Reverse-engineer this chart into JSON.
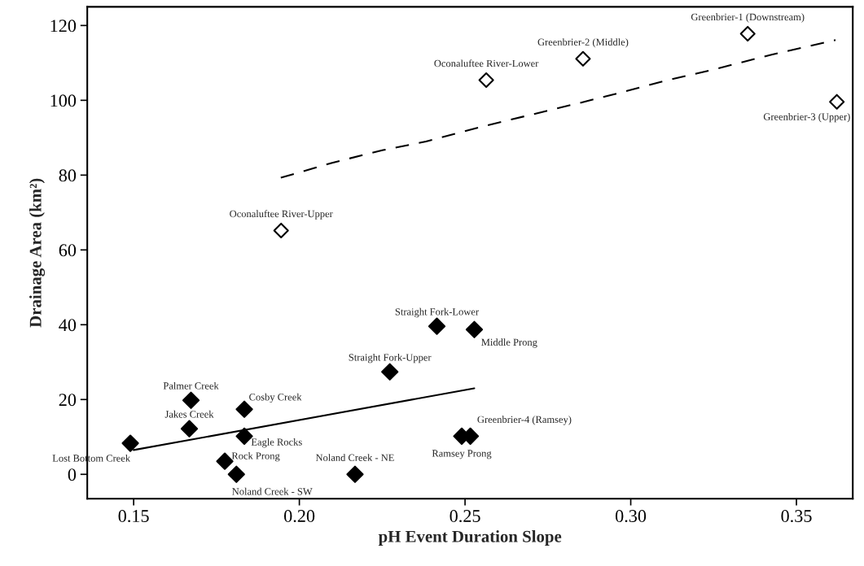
{
  "chart_data": {
    "type": "scatter",
    "xlabel": "pH Event Duration Slope",
    "ylabel": "Drainage Area (km²)",
    "xlim": [
      0.136,
      0.367
    ],
    "ylim": [
      -6.5,
      125
    ],
    "xticks": [
      {
        "value": 0.15,
        "label": "0.15"
      },
      {
        "value": 0.2,
        "label": "0.20"
      },
      {
        "value": 0.25,
        "label": "0.25"
      },
      {
        "value": 0.3,
        "label": "0.30"
      },
      {
        "value": 0.35,
        "label": "0.35"
      }
    ],
    "yticks": [
      0,
      20,
      40,
      60,
      80,
      100,
      120
    ],
    "grid": false,
    "legend": false,
    "marker": "diamond",
    "series": [
      {
        "color": "#000000",
        "x": [
          0.149,
          0.1673,
          0.1668,
          0.1834,
          0.1834,
          0.1775,
          0.181,
          0.2168,
          0.2273,
          0.2415,
          0.2528,
          0.249,
          0.2516
        ],
        "values": [
          8.3,
          19.8,
          12.2,
          17.4,
          10.2,
          3.5,
          0,
          0,
          27.4,
          39.6,
          38.7,
          10.2,
          10.2
        ]
      },
      {
        "color": "#ffffff",
        "x": [
          0.1945,
          0.2564,
          0.2856,
          0.3353,
          0.3622
        ],
        "values": [
          65.2,
          105.4,
          111.1,
          117.8,
          99.6
        ]
      },
      {
        "type": "line",
        "color": "#000000",
        "line_style": "solid",
        "marker": "none",
        "x": [
          0.15,
          0.2528
        ],
        "values": [
          6.5,
          23.0
        ]
      },
      {
        "type": "line",
        "color": "#000000",
        "line_style": "dashed",
        "marker": "none",
        "x": [
          0.1944,
          0.2099,
          0.2253,
          0.2382,
          0.2562,
          0.2846,
          0.2949,
          0.3103,
          0.3258,
          0.3425,
          0.3618
        ],
        "values": [
          79.3,
          83.3,
          86.7,
          89.0,
          93.2,
          99.3,
          101.6,
          105.2,
          108.4,
          112.2,
          116.1
        ]
      }
    ],
    "annotations": [
      {
        "text": "Lost Bottom Creek",
        "x": 0.149,
        "y": 8.3
      },
      {
        "text": "Palmer Creek",
        "x": 0.1673,
        "y": 19.8
      },
      {
        "text": "Jakes Creek",
        "x": 0.1668,
        "y": 12.2
      },
      {
        "text": "Cosby Creek",
        "x": 0.1834,
        "y": 17.4
      },
      {
        "text": "Eagle Rocks",
        "x": 0.1834,
        "y": 10.2
      },
      {
        "text": "Rock Prong",
        "x": 0.1775,
        "y": 3.5
      },
      {
        "text": "Noland Creek - SW",
        "x": 0.181,
        "y": 0
      },
      {
        "text": "Noland Creek - NE",
        "x": 0.2168,
        "y": 0
      },
      {
        "text": "Straight Fork-Upper",
        "x": 0.2273,
        "y": 27.4
      },
      {
        "text": "Straight Fork-Lower",
        "x": 0.2415,
        "y": 39.6
      },
      {
        "text": "Middle Prong",
        "x": 0.2528,
        "y": 38.7
      },
      {
        "text": "Ramsey Prong",
        "x": 0.249,
        "y": 10.2
      },
      {
        "text": "Greenbrier-4 (Ramsey)",
        "x": 0.2516,
        "y": 10.2
      },
      {
        "text": "Oconaluftee River-Upper",
        "x": 0.1945,
        "y": 65.2
      },
      {
        "text": "Oconaluftee River-Lower",
        "x": 0.2564,
        "y": 105.4
      },
      {
        "text": "Greenbrier-2 (Middle)",
        "x": 0.2856,
        "y": 111.1
      },
      {
        "text": "Greenbrier-1 (Downstream)",
        "x": 0.3353,
        "y": 117.8
      },
      {
        "text": "Greenbrier-3 (Upper)",
        "x": 0.3622,
        "y": 99.6
      }
    ]
  }
}
